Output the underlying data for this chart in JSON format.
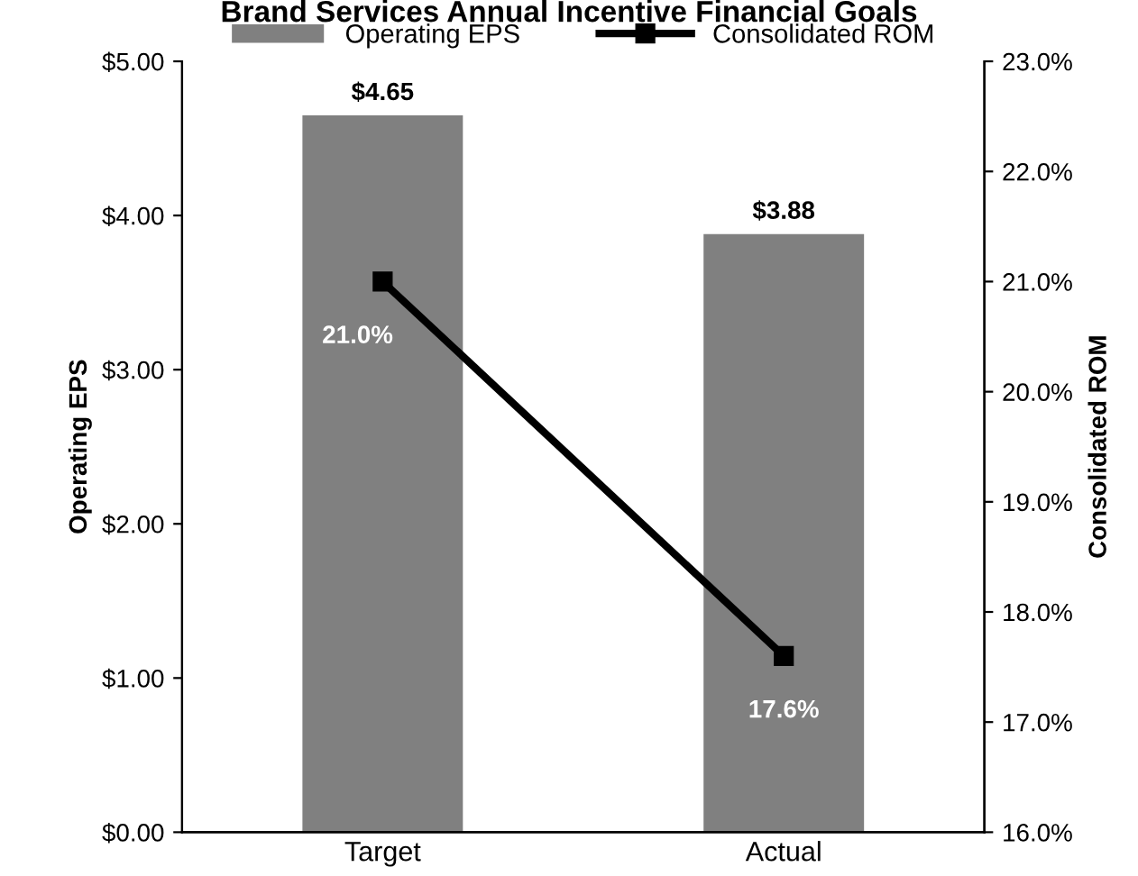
{
  "chart_data": {
    "type": "bar",
    "title": "Brand Services Annual Incentive Financial Goals",
    "categories": [
      "Target",
      "Actual"
    ],
    "series": [
      {
        "name": "Operating EPS",
        "color": "#808080",
        "values": [
          4.65,
          3.88
        ],
        "value_labels": [
          "$4.65",
          "$3.88"
        ]
      },
      {
        "name": "Consolidated ROM",
        "type": "line",
        "axis": "y2",
        "color": "#000000",
        "values": [
          21.0,
          17.6
        ],
        "value_labels": [
          "21.0%",
          "17.6%"
        ]
      }
    ],
    "ylabel": "Operating EPS",
    "y2label": "Consolidated ROM",
    "ylim": [
      0,
      5
    ],
    "yticks": [
      {
        "value": 0,
        "label": "$0.00"
      },
      {
        "value": 1,
        "label": "$1.00"
      },
      {
        "value": 2,
        "label": "$2.00"
      },
      {
        "value": 3,
        "label": "$3.00"
      },
      {
        "value": 4,
        "label": "$4.00"
      },
      {
        "value": 5,
        "label": "$5.00"
      }
    ],
    "y2lim": [
      16,
      23
    ],
    "y2ticks": [
      {
        "value": 16,
        "label": "16.0%"
      },
      {
        "value": 17,
        "label": "17.0%"
      },
      {
        "value": 18,
        "label": "18.0%"
      },
      {
        "value": 19,
        "label": "19.0%"
      },
      {
        "value": 20,
        "label": "20.0%"
      },
      {
        "value": 21,
        "label": "21.0%"
      },
      {
        "value": 22,
        "label": "22.0%"
      },
      {
        "value": 23,
        "label": "23.0%"
      }
    ],
    "legend": "top",
    "marker": "square",
    "line_style": "solid",
    "grid": false
  }
}
